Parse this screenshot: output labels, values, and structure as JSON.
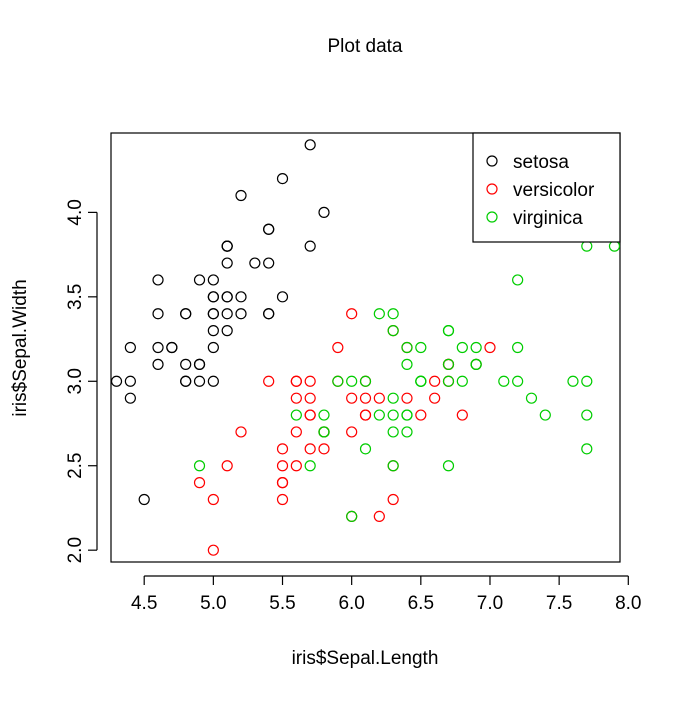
{
  "chart_data": {
    "type": "scatter",
    "title": "Plot data",
    "xlabel": "iris$Sepal.Length",
    "ylabel": "iris$Sepal.Width",
    "xlim": [
      4.26,
      7.94
    ],
    "ylim": [
      1.93,
      4.47
    ],
    "x_ticks": [
      4.5,
      5.0,
      5.5,
      6.0,
      6.5,
      7.0,
      7.5,
      8.0
    ],
    "x_tick_labels": [
      "4.5",
      "5.0",
      "5.5",
      "6.0",
      "6.5",
      "7.0",
      "7.5",
      "8.0"
    ],
    "y_ticks": [
      2.0,
      2.5,
      3.0,
      3.5,
      4.0
    ],
    "y_tick_labels": [
      "2.0",
      "2.5",
      "3.0",
      "3.5",
      "4.0"
    ],
    "grid": false,
    "legend_position": "top-right",
    "marker": "open-circle",
    "series": [
      {
        "name": "setosa",
        "color": "#000000",
        "points": [
          [
            5.1,
            3.5
          ],
          [
            4.9,
            3.0
          ],
          [
            4.7,
            3.2
          ],
          [
            4.6,
            3.1
          ],
          [
            5.0,
            3.6
          ],
          [
            5.4,
            3.9
          ],
          [
            4.6,
            3.4
          ],
          [
            5.0,
            3.4
          ],
          [
            4.4,
            2.9
          ],
          [
            4.9,
            3.1
          ],
          [
            5.4,
            3.7
          ],
          [
            4.8,
            3.4
          ],
          [
            4.8,
            3.0
          ],
          [
            4.3,
            3.0
          ],
          [
            5.8,
            4.0
          ],
          [
            5.7,
            4.4
          ],
          [
            5.4,
            3.9
          ],
          [
            5.1,
            3.5
          ],
          [
            5.7,
            3.8
          ],
          [
            5.1,
            3.8
          ],
          [
            5.4,
            3.4
          ],
          [
            5.1,
            3.7
          ],
          [
            4.6,
            3.6
          ],
          [
            5.1,
            3.3
          ],
          [
            4.8,
            3.4
          ],
          [
            5.0,
            3.0
          ],
          [
            5.0,
            3.4
          ],
          [
            5.2,
            3.5
          ],
          [
            5.2,
            3.4
          ],
          [
            4.7,
            3.2
          ],
          [
            4.8,
            3.1
          ],
          [
            5.4,
            3.4
          ],
          [
            5.2,
            4.1
          ],
          [
            5.5,
            4.2
          ],
          [
            4.9,
            3.1
          ],
          [
            5.0,
            3.2
          ],
          [
            5.5,
            3.5
          ],
          [
            4.9,
            3.6
          ],
          [
            4.4,
            3.0
          ],
          [
            5.1,
            3.4
          ],
          [
            5.0,
            3.5
          ],
          [
            4.5,
            2.3
          ],
          [
            4.4,
            3.2
          ],
          [
            5.0,
            3.5
          ],
          [
            5.1,
            3.8
          ],
          [
            4.8,
            3.0
          ],
          [
            5.1,
            3.8
          ],
          [
            4.6,
            3.2
          ],
          [
            5.3,
            3.7
          ],
          [
            5.0,
            3.3
          ]
        ]
      },
      {
        "name": "versicolor",
        "color": "#ff0000",
        "points": [
          [
            7.0,
            3.2
          ],
          [
            6.4,
            3.2
          ],
          [
            6.9,
            3.1
          ],
          [
            5.5,
            2.3
          ],
          [
            6.5,
            2.8
          ],
          [
            5.7,
            2.8
          ],
          [
            6.3,
            3.3
          ],
          [
            4.9,
            2.4
          ],
          [
            6.6,
            2.9
          ],
          [
            5.2,
            2.7
          ],
          [
            5.0,
            2.0
          ],
          [
            5.9,
            3.0
          ],
          [
            6.0,
            2.2
          ],
          [
            6.1,
            2.9
          ],
          [
            5.6,
            2.9
          ],
          [
            6.7,
            3.1
          ],
          [
            5.6,
            3.0
          ],
          [
            5.8,
            2.7
          ],
          [
            6.2,
            2.2
          ],
          [
            5.6,
            2.5
          ],
          [
            5.9,
            3.2
          ],
          [
            6.1,
            2.8
          ],
          [
            6.3,
            2.5
          ],
          [
            6.1,
            2.8
          ],
          [
            6.4,
            2.9
          ],
          [
            6.6,
            3.0
          ],
          [
            6.8,
            2.8
          ],
          [
            6.7,
            3.0
          ],
          [
            6.0,
            2.9
          ],
          [
            5.7,
            2.6
          ],
          [
            5.5,
            2.4
          ],
          [
            5.5,
            2.4
          ],
          [
            5.8,
            2.7
          ],
          [
            6.0,
            2.7
          ],
          [
            5.4,
            3.0
          ],
          [
            6.0,
            3.4
          ],
          [
            6.7,
            3.1
          ],
          [
            6.3,
            2.3
          ],
          [
            5.6,
            3.0
          ],
          [
            5.5,
            2.5
          ],
          [
            5.5,
            2.6
          ],
          [
            6.1,
            3.0
          ],
          [
            5.8,
            2.6
          ],
          [
            5.0,
            2.3
          ],
          [
            5.6,
            2.7
          ],
          [
            5.7,
            3.0
          ],
          [
            5.7,
            2.9
          ],
          [
            6.2,
            2.9
          ],
          [
            5.1,
            2.5
          ],
          [
            5.7,
            2.8
          ]
        ]
      },
      {
        "name": "virginica",
        "color": "#00cd00",
        "points": [
          [
            6.3,
            3.3
          ],
          [
            5.8,
            2.7
          ],
          [
            7.1,
            3.0
          ],
          [
            6.3,
            2.9
          ],
          [
            6.5,
            3.0
          ],
          [
            7.6,
            3.0
          ],
          [
            4.9,
            2.5
          ],
          [
            7.3,
            2.9
          ],
          [
            6.7,
            2.5
          ],
          [
            7.2,
            3.6
          ],
          [
            6.5,
            3.2
          ],
          [
            6.4,
            2.7
          ],
          [
            6.8,
            3.0
          ],
          [
            5.7,
            2.5
          ],
          [
            5.8,
            2.8
          ],
          [
            6.4,
            3.2
          ],
          [
            6.5,
            3.0
          ],
          [
            7.7,
            3.8
          ],
          [
            7.7,
            2.6
          ],
          [
            6.0,
            2.2
          ],
          [
            6.9,
            3.2
          ],
          [
            5.6,
            2.8
          ],
          [
            7.7,
            2.8
          ],
          [
            6.3,
            2.7
          ],
          [
            6.7,
            3.3
          ],
          [
            7.2,
            3.2
          ],
          [
            6.2,
            2.8
          ],
          [
            6.1,
            3.0
          ],
          [
            6.4,
            2.8
          ],
          [
            7.2,
            3.0
          ],
          [
            7.4,
            2.8
          ],
          [
            7.9,
            3.8
          ],
          [
            6.4,
            2.8
          ],
          [
            6.3,
            2.8
          ],
          [
            6.1,
            2.6
          ],
          [
            7.7,
            3.0
          ],
          [
            6.3,
            3.4
          ],
          [
            6.4,
            3.1
          ],
          [
            6.0,
            3.0
          ],
          [
            6.9,
            3.1
          ],
          [
            6.7,
            3.1
          ],
          [
            6.9,
            3.1
          ],
          [
            5.8,
            2.7
          ],
          [
            6.8,
            3.2
          ],
          [
            6.7,
            3.3
          ],
          [
            6.7,
            3.0
          ],
          [
            6.3,
            2.5
          ],
          [
            6.5,
            3.0
          ],
          [
            6.2,
            3.4
          ],
          [
            5.9,
            3.0
          ]
        ]
      }
    ]
  }
}
